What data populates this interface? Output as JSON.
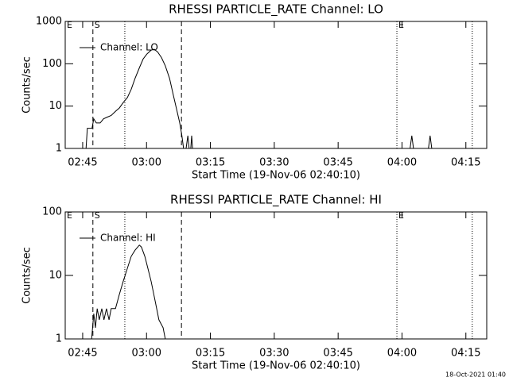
{
  "chart_data": [
    {
      "type": "line",
      "title": "RHESSI PARTICLE_RATE Channel: LO",
      "xlabel": "Start Time (19-Nov-06 02:40:10)",
      "ylabel": "Counts/sec",
      "log_y": true,
      "legend": "upper left",
      "xlim": [
        160.9,
        259.9
      ],
      "ylim": [
        1,
        1000
      ],
      "xticks": [
        {
          "value": 165,
          "label": "02:45"
        },
        {
          "value": 180,
          "label": "03:00"
        },
        {
          "value": 195,
          "label": "03:15"
        },
        {
          "value": 210,
          "label": "03:30"
        },
        {
          "value": 225,
          "label": "03:45"
        },
        {
          "value": 240,
          "label": "04:00"
        },
        {
          "value": 255,
          "label": "04:15"
        }
      ],
      "yticks": [
        1,
        10,
        100,
        1000
      ],
      "annotations": [
        {
          "x": 160.9,
          "label": "E",
          "style": "solid"
        },
        {
          "x": 167.4,
          "label": "S",
          "style": "dashed"
        },
        {
          "x": 174.9,
          "style": "dotted"
        },
        {
          "x": 188.2,
          "style": "dashed"
        },
        {
          "x": 238.8,
          "label": "E",
          "style": "dotted"
        },
        {
          "x": 256.5,
          "style": "dotted"
        }
      ],
      "x": [
        165.8,
        166.1,
        167.2,
        167.6,
        168.2,
        169.1,
        169.9,
        170.8,
        171.7,
        172.7,
        173.6,
        174.5,
        175.5,
        176.4,
        177.3,
        178.3,
        179.2,
        180.1,
        181.1,
        181.8,
        182.6,
        183.5,
        184.4,
        185.4,
        186.3,
        187.0,
        187.8,
        188.3,
        188.7,
        189.0,
        189.3,
        189.7,
        190.0,
        190.2,
        190.4,
        190.6,
        190.8,
        216.0,
        241.9,
        242.3,
        242.7,
        244.5,
        246.2,
        246.6,
        247.0
      ],
      "series": [
        {
          "name": "Channel: LO",
          "color": "#000000",
          "values": [
            1,
            3,
            3,
            5,
            4,
            4,
            5,
            5.5,
            6,
            7.5,
            9,
            12,
            16,
            25,
            45,
            80,
            130,
            170,
            210,
            220,
            190,
            140,
            90,
            45,
            18,
            9,
            4,
            2,
            1,
            null,
            1,
            2,
            1,
            null,
            1,
            2,
            1,
            null,
            1,
            2,
            1,
            null,
            1,
            2,
            1
          ]
        }
      ]
    },
    {
      "type": "line",
      "title": "RHESSI PARTICLE_RATE Channel: HI",
      "xlabel": "Start Time (19-Nov-06 02:40:10)",
      "ylabel": "Counts/sec",
      "log_y": true,
      "legend": "upper left",
      "xlim": [
        160.9,
        259.9
      ],
      "ylim": [
        1,
        100
      ],
      "xticks": [
        {
          "value": 165,
          "label": "02:45"
        },
        {
          "value": 180,
          "label": "03:00"
        },
        {
          "value": 195,
          "label": "03:15"
        },
        {
          "value": 210,
          "label": "03:30"
        },
        {
          "value": 225,
          "label": "03:45"
        },
        {
          "value": 240,
          "label": "04:00"
        },
        {
          "value": 255,
          "label": "04:15"
        }
      ],
      "yticks": [
        1,
        10,
        100
      ],
      "annotations": [
        {
          "x": 160.9,
          "label": "E",
          "style": "solid"
        },
        {
          "x": 167.4,
          "label": "S",
          "style": "dashed"
        },
        {
          "x": 174.9,
          "style": "dotted"
        },
        {
          "x": 188.2,
          "style": "dashed"
        },
        {
          "x": 238.8,
          "label": "E",
          "style": "dotted"
        },
        {
          "x": 256.5,
          "style": "dotted"
        }
      ],
      "x": [
        167.1,
        167.6,
        168.0,
        168.4,
        168.9,
        169.5,
        170.0,
        170.6,
        171.2,
        171.7,
        172.7,
        173.6,
        174.5,
        175.5,
        176.4,
        177.3,
        178.3,
        178.8,
        179.6,
        180.3,
        181.1,
        182.0,
        182.9,
        183.9,
        184.4
      ],
      "series": [
        {
          "name": "Channel: HI",
          "color": "#000000",
          "values": [
            1,
            2.5,
            1.5,
            3,
            2,
            3,
            2,
            3,
            2,
            3,
            3,
            5,
            8,
            13,
            20,
            25,
            30,
            28,
            20,
            13,
            8,
            4,
            2,
            1.5,
            1
          ]
        }
      ]
    }
  ],
  "timestamp": "18-Oct-2021 01:40"
}
